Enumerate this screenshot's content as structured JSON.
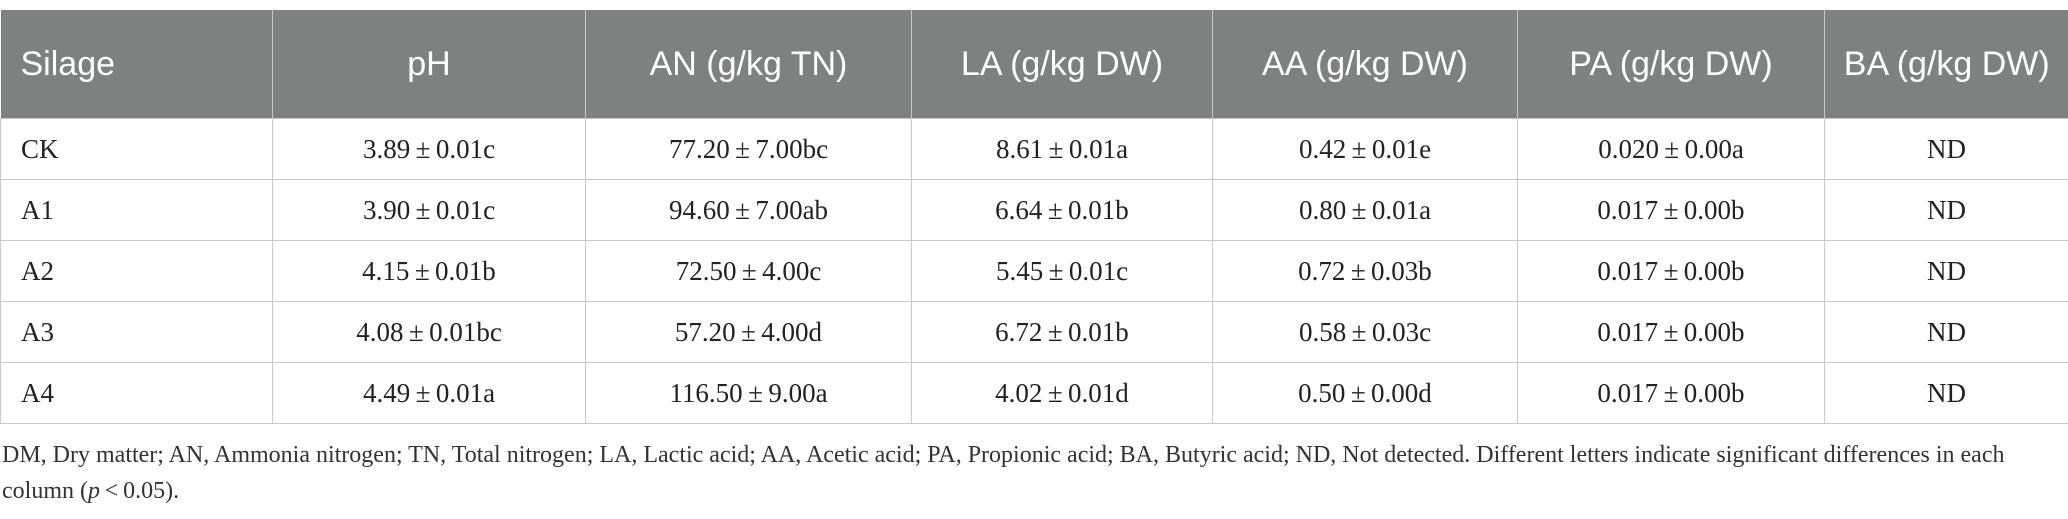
{
  "table": {
    "headers": [
      "Silage",
      "pH",
      "AN (g/kg TN)",
      "LA (g/kg DW)",
      "AA (g/kg DW)",
      "PA (g/kg DW)",
      "BA (g/kg DW)"
    ],
    "rows": [
      [
        "CK",
        "3.89 ± 0.01c",
        "77.20 ± 7.00bc",
        "8.61 ± 0.01a",
        "0.42 ± 0.01e",
        "0.020 ± 0.00a",
        "ND"
      ],
      [
        "A1",
        "3.90 ± 0.01c",
        "94.60 ± 7.00ab",
        "6.64 ± 0.01b",
        "0.80 ± 0.01a",
        "0.017 ± 0.00b",
        "ND"
      ],
      [
        "A2",
        "4.15 ± 0.01b",
        "72.50 ± 4.00c",
        "5.45 ± 0.01c",
        "0.72 ± 0.03b",
        "0.017 ± 0.00b",
        "ND"
      ],
      [
        "A3",
        "4.08 ± 0.01bc",
        "57.20 ± 4.00d",
        "6.72 ± 0.01b",
        "0.58 ± 0.03c",
        "0.017 ± 0.00b",
        "ND"
      ],
      [
        "A4",
        "4.49 ± 0.01a",
        "116.50 ± 9.00a",
        "4.02 ± 0.01d",
        "0.50 ± 0.00d",
        "0.017 ± 0.00b",
        "ND"
      ]
    ]
  },
  "footnote": {
    "text_before": "DM, Dry matter; AN, Ammonia nitrogen; TN, Total nitrogen; LA, Lactic acid; AA, Acetic acid; PA, Propionic acid; BA, Butyric acid; ND, Not detected. Different letters indicate significant differences in each column (",
    "p_symbol": "p",
    "text_after": " < 0.05)."
  },
  "colors": {
    "header_background": "#7f8180",
    "header_text": "#ffffff",
    "grid_lines": "#c9c9c9"
  }
}
